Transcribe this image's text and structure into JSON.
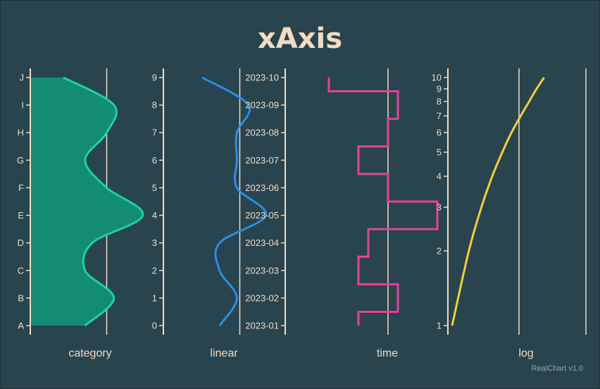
{
  "colors": {
    "background": "#27444f",
    "axis_line": "#f2dcc2",
    "text": "#f2dcc2",
    "category_series": "#1ad5a1",
    "category_fill": "#128c73",
    "linear_series": "#2a8fe8",
    "time_series": "#e8409a",
    "log_series": "#f5d12f",
    "credit": "#9aa8a8"
  },
  "chart_data": {
    "title": "xAxis",
    "credit": "RealChart v1.0",
    "grid": false,
    "panels": [
      {
        "type": "area",
        "name": "category",
        "axis_label": "category",
        "ticks": [
          "A",
          "B",
          "C",
          "D",
          "E",
          "F",
          "G",
          "H",
          "I",
          "J"
        ],
        "categories": [
          "A",
          "B",
          "C",
          "D",
          "E",
          "F",
          "G",
          "H",
          "I",
          "J"
        ],
        "values": [
          7,
          11,
          7,
          8,
          15,
          10,
          7,
          10,
          11,
          4
        ],
        "xlim": [
          0,
          16
        ],
        "reference_x": 10
      },
      {
        "type": "line",
        "name": "linear",
        "axis_label": "linear",
        "ticks": [
          "0",
          "1",
          "2",
          "3",
          "4",
          "5",
          "6",
          "7",
          "8",
          "9"
        ],
        "y": [
          0,
          1,
          2,
          3,
          4,
          5,
          6,
          7,
          8,
          9
        ],
        "values": [
          9,
          12,
          9,
          9,
          17,
          12,
          12,
          12,
          14,
          6
        ],
        "xlim": [
          0,
          20
        ],
        "reference_x": 12.5
      },
      {
        "type": "line",
        "name": "time",
        "axis_label": "time",
        "step": true,
        "ticks": [
          "2023-01",
          "2023-02",
          "2023-03",
          "2023-04",
          "2023-05",
          "2023-06",
          "2023-07",
          "2023-08",
          "2023-09",
          "2023-10"
        ],
        "y": [
          "2023-01",
          "2023-02",
          "2023-03",
          "2023-04",
          "2023-05",
          "2023-06",
          "2023-07",
          "2023-08",
          "2023-09",
          "2023-10"
        ],
        "values": [
          7,
          11,
          7,
          8,
          15,
          10,
          7,
          10,
          11,
          4
        ],
        "xlim": [
          0,
          16
        ],
        "reference_x": 10
      },
      {
        "type": "line",
        "name": "log",
        "axis_label": "log",
        "log_scale": true,
        "ticks": [
          "1",
          "2",
          "3",
          "4",
          "5",
          "6",
          "7",
          "8",
          "9",
          "10"
        ],
        "y": [
          1,
          2,
          3,
          4,
          5,
          6,
          7,
          8,
          9,
          10
        ],
        "values": [
          0,
          2,
          3.5,
          4.8,
          6,
          7.1,
          8.2,
          9.2,
          10.1,
          11
        ],
        "xlim": [
          0,
          16
        ],
        "reference_x": 8
      }
    ]
  }
}
